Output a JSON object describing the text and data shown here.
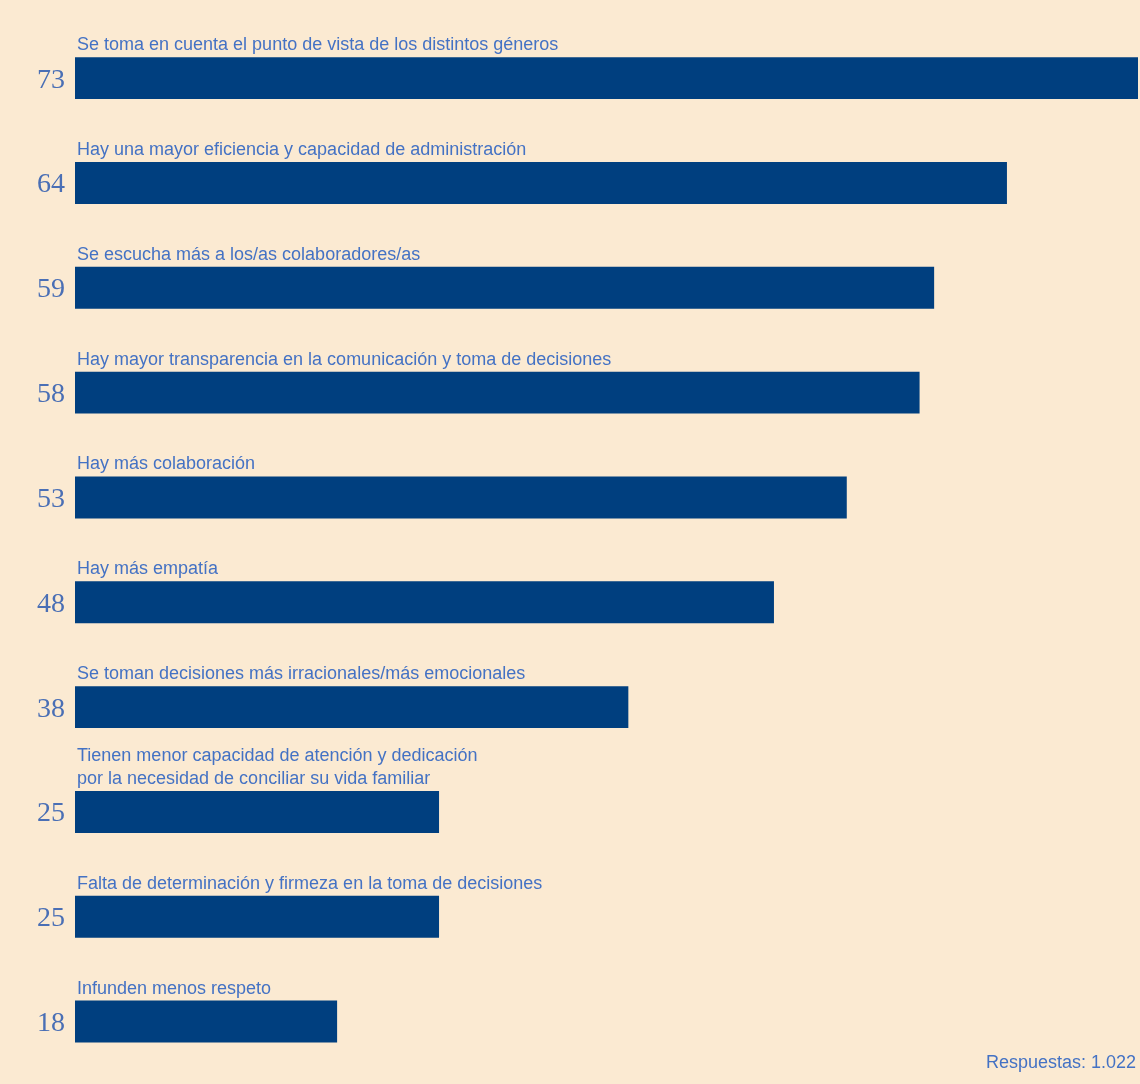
{
  "chart_data": {
    "type": "bar",
    "orientation": "horizontal",
    "categories": [
      "Se toma en cuenta el punto de vista de los distintos géneros",
      "Hay una mayor eficiencia y capacidad de administración",
      "Se escucha más a los/as colaboradores/as",
      "Hay mayor transparencia en la comunicación y toma de decisiones",
      "Hay más colaboración",
      "Hay más empatía",
      "Se toman decisiones más irracionales/más emocionales",
      "Tienen menor capacidad de atención y dedicación\npor la necesidad de conciliar su vida familiar",
      "Falta de determinación y firmeza en la toma de decisiones",
      "Infunden menos respeto"
    ],
    "values": [
      73,
      64,
      59,
      58,
      53,
      48,
      38,
      25,
      25,
      18
    ],
    "color": "#003f7f",
    "xlim": [
      0,
      73
    ],
    "tick_labels": false,
    "data_labels": true,
    "annotations": [
      "Respuestas: 1.022"
    ]
  }
}
